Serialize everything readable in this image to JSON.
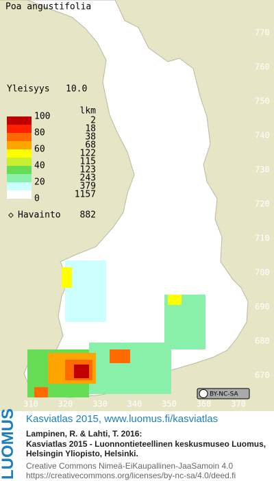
{
  "title": "Poa angustifolia",
  "frequency": {
    "label": "Yleisyys",
    "value": "10.0"
  },
  "legend": {
    "count_header": "lkm",
    "scale_labels": [
      100,
      80,
      60,
      40,
      20,
      0
    ],
    "classes": [
      {
        "color": "#c00000",
        "count": 2
      },
      {
        "color": "#ff2000",
        "count": 18
      },
      {
        "color": "#ff6a00",
        "count": 38
      },
      {
        "color": "#ffa500",
        "count": 68
      },
      {
        "color": "#ffff00",
        "count": 122
      },
      {
        "color": "#c8f030",
        "count": 115
      },
      {
        "color": "#66dd55",
        "count": 123
      },
      {
        "color": "#88f0a8",
        "count": 243
      },
      {
        "color": "#ccffff",
        "count": 379
      },
      {
        "color": "#ffffff",
        "count": 1157
      }
    ]
  },
  "observations": {
    "label": "Havainto",
    "value": 882
  },
  "grid_y": [
    770,
    760,
    750,
    740,
    730,
    720,
    710,
    700,
    690,
    680,
    670
  ],
  "grid_x": [
    310,
    320,
    330,
    340,
    350,
    360,
    370
  ],
  "license_badge": "BY-NC-SA",
  "footer": {
    "logo": "LUOMUS",
    "heading": "Kasviatlas 2015, www.luomus.fi/kasviatlas",
    "citation": [
      "Lampinen, R. & Lahti, T. 2016:",
      "Kasviatlas 2015 - Luonnontieteellinen keskusmuseo Luomus,",
      "Helsingin Yliopisto, Helsinki."
    ],
    "license": [
      "Creative Commons Nimeä-EiKaupallinen-JaaSamoin 4.0",
      "https://creativecommons.org/licenses/by-nc-sa/4.0/deed.fi"
    ]
  }
}
